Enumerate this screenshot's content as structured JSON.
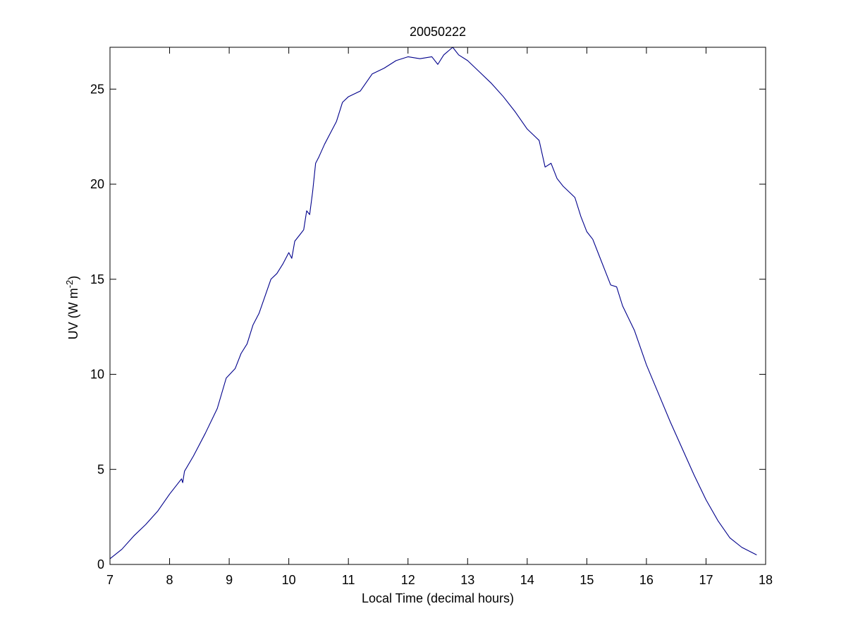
{
  "chart_data": {
    "type": "line",
    "title": "20050222",
    "xlabel": "Local Time (decimal hours)",
    "ylabel": {
      "main": "UV (W m",
      "superscript": "-2",
      "suffix": ")"
    },
    "xlim": [
      7,
      18
    ],
    "ylim": [
      0,
      27.2
    ],
    "xticks": [
      "7",
      "8",
      "9",
      "10",
      "11",
      "12",
      "13",
      "14",
      "15",
      "16",
      "17",
      "18"
    ],
    "yticks": [
      "0",
      "5",
      "10",
      "15",
      "20",
      "25"
    ],
    "grid": false,
    "line_color": "#00008b",
    "series": [
      {
        "x": [
          7.0,
          7.2,
          7.4,
          7.6,
          7.8,
          8.0,
          8.2,
          8.22,
          8.25,
          8.4,
          8.6,
          8.8,
          8.95,
          9.1,
          9.2,
          9.3,
          9.4,
          9.5,
          9.6,
          9.7,
          9.8,
          9.9,
          10.0,
          10.05,
          10.1,
          10.2,
          10.25,
          10.3,
          10.35,
          10.4,
          10.45,
          10.5,
          10.6,
          10.7,
          10.8,
          10.9,
          11.0,
          11.2,
          11.4,
          11.6,
          11.8,
          12.0,
          12.2,
          12.4,
          12.5,
          12.6,
          12.75,
          12.85,
          13.0,
          13.2,
          13.4,
          13.6,
          13.8,
          14.0,
          14.2,
          14.3,
          14.4,
          14.5,
          14.6,
          14.8,
          14.9,
          15.0,
          15.1,
          15.2,
          15.4,
          15.5,
          15.6,
          15.8,
          16.0,
          16.2,
          16.4,
          16.6,
          16.8,
          17.0,
          17.2,
          17.4,
          17.6,
          17.85
        ],
        "y": [
          0.3,
          0.8,
          1.5,
          2.1,
          2.8,
          3.7,
          4.5,
          4.3,
          4.9,
          5.7,
          6.9,
          8.2,
          9.8,
          10.3,
          11.1,
          11.6,
          12.6,
          13.2,
          14.1,
          15.0,
          15.3,
          15.8,
          16.4,
          16.1,
          17.0,
          17.4,
          17.6,
          18.6,
          18.4,
          19.6,
          21.1,
          21.4,
          22.1,
          22.7,
          23.3,
          24.3,
          24.6,
          24.9,
          25.8,
          26.1,
          26.5,
          26.7,
          26.6,
          26.7,
          26.3,
          26.8,
          27.2,
          26.8,
          26.5,
          25.9,
          25.3,
          24.6,
          23.8,
          22.9,
          22.3,
          20.9,
          21.1,
          20.3,
          19.9,
          19.3,
          18.3,
          17.5,
          17.1,
          16.3,
          14.7,
          14.6,
          13.6,
          12.3,
          10.5,
          9.0,
          7.5,
          6.1,
          4.7,
          3.4,
          2.3,
          1.4,
          0.9,
          0.5
        ]
      }
    ]
  }
}
